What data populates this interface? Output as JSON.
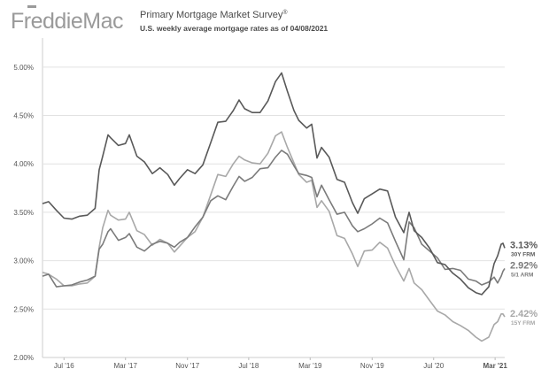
{
  "header": {
    "logo_text": "FreddieMac",
    "title": "Primary Mortgage Market Survey",
    "title_mark": "®",
    "subtitle": "U.S. weekly average mortgage rates as of 04/08/2021"
  },
  "colors": {
    "logo": "#9a9a9a",
    "series_30y": "#595959",
    "series_arm": "#7b7b7b",
    "series_15y": "#a8a8a8",
    "grid": "#e2e2e2",
    "background": "#ffffff"
  },
  "chart_data": {
    "type": "line",
    "xlabel": "",
    "ylabel": "",
    "x_range": [
      "2016-04-07",
      "2021-04-08"
    ],
    "ylim": [
      2.0,
      5.3
    ],
    "grid": "horizontal",
    "y_ticks": [
      {
        "value": 2.0,
        "label": "2.00%"
      },
      {
        "value": 2.5,
        "label": "2.50%"
      },
      {
        "value": 3.0,
        "label": "3.00%"
      },
      {
        "value": 3.5,
        "label": "3.50%"
      },
      {
        "value": 4.0,
        "label": "4.00%"
      },
      {
        "value": 4.5,
        "label": "4.50%"
      },
      {
        "value": 5.0,
        "label": "5.00%"
      }
    ],
    "x_ticks": [
      {
        "date": "2016-07-01",
        "label": "Jul '16",
        "bold": false
      },
      {
        "date": "2017-03-01",
        "label": "Mar '17",
        "bold": false
      },
      {
        "date": "2017-11-01",
        "label": "Nov '17",
        "bold": false
      },
      {
        "date": "2018-07-01",
        "label": "Jul '18",
        "bold": false
      },
      {
        "date": "2019-03-01",
        "label": "Mar '19",
        "bold": false
      },
      {
        "date": "2019-11-01",
        "label": "Nov '19",
        "bold": false
      },
      {
        "date": "2020-07-01",
        "label": "Jul '20",
        "bold": false
      },
      {
        "date": "2021-03-01",
        "label": "Mar '21",
        "bold": true
      }
    ],
    "series": [
      {
        "key": "30y",
        "name": "30Y FRM",
        "end_value_label": "3.13%",
        "color": "#595959",
        "points": [
          [
            "2016-04-07",
            3.59
          ],
          [
            "2016-05-01",
            3.61
          ],
          [
            "2016-06-01",
            3.52
          ],
          [
            "2016-07-01",
            3.44
          ],
          [
            "2016-08-01",
            3.43
          ],
          [
            "2016-09-01",
            3.46
          ],
          [
            "2016-10-01",
            3.47
          ],
          [
            "2016-11-01",
            3.54
          ],
          [
            "2016-11-17",
            3.94
          ],
          [
            "2016-12-01",
            4.08
          ],
          [
            "2016-12-22",
            4.3
          ],
          [
            "2017-01-01",
            4.27
          ],
          [
            "2017-02-01",
            4.19
          ],
          [
            "2017-03-01",
            4.21
          ],
          [
            "2017-03-16",
            4.3
          ],
          [
            "2017-04-15",
            4.08
          ],
          [
            "2017-05-15",
            4.02
          ],
          [
            "2017-06-15",
            3.9
          ],
          [
            "2017-07-15",
            3.96
          ],
          [
            "2017-08-15",
            3.89
          ],
          [
            "2017-09-10",
            3.78
          ],
          [
            "2017-10-01",
            3.85
          ],
          [
            "2017-11-01",
            3.94
          ],
          [
            "2017-12-01",
            3.9
          ],
          [
            "2018-01-01",
            3.99
          ],
          [
            "2018-02-01",
            4.22
          ],
          [
            "2018-03-01",
            4.43
          ],
          [
            "2018-04-01",
            4.44
          ],
          [
            "2018-05-01",
            4.55
          ],
          [
            "2018-05-24",
            4.66
          ],
          [
            "2018-06-15",
            4.57
          ],
          [
            "2018-07-15",
            4.53
          ],
          [
            "2018-08-15",
            4.53
          ],
          [
            "2018-09-15",
            4.65
          ],
          [
            "2018-10-15",
            4.85
          ],
          [
            "2018-11-08",
            4.94
          ],
          [
            "2018-12-01",
            4.75
          ],
          [
            "2018-12-27",
            4.55
          ],
          [
            "2019-01-15",
            4.45
          ],
          [
            "2019-02-15",
            4.37
          ],
          [
            "2019-03-07",
            4.41
          ],
          [
            "2019-03-28",
            4.06
          ],
          [
            "2019-04-15",
            4.17
          ],
          [
            "2019-05-15",
            4.07
          ],
          [
            "2019-06-15",
            3.84
          ],
          [
            "2019-07-15",
            3.81
          ],
          [
            "2019-08-15",
            3.6
          ],
          [
            "2019-09-05",
            3.49
          ],
          [
            "2019-10-01",
            3.64
          ],
          [
            "2019-11-01",
            3.69
          ],
          [
            "2019-12-01",
            3.74
          ],
          [
            "2020-01-01",
            3.72
          ],
          [
            "2020-02-01",
            3.45
          ],
          [
            "2020-03-05",
            3.29
          ],
          [
            "2020-03-26",
            3.5
          ],
          [
            "2020-04-15",
            3.31
          ],
          [
            "2020-05-15",
            3.24
          ],
          [
            "2020-06-15",
            3.13
          ],
          [
            "2020-07-16",
            2.98
          ],
          [
            "2020-08-15",
            2.96
          ],
          [
            "2020-09-15",
            2.87
          ],
          [
            "2020-10-15",
            2.81
          ],
          [
            "2020-11-15",
            2.72
          ],
          [
            "2020-12-15",
            2.67
          ],
          [
            "2021-01-07",
            2.65
          ],
          [
            "2021-02-04",
            2.73
          ],
          [
            "2021-02-25",
            2.97
          ],
          [
            "2021-03-11",
            3.05
          ],
          [
            "2021-03-25",
            3.17
          ],
          [
            "2021-04-01",
            3.18
          ],
          [
            "2021-04-08",
            3.13
          ]
        ]
      },
      {
        "key": "arm",
        "name": "5/1 ARM",
        "end_value_label": "2.92%",
        "color": "#7b7b7b",
        "points": [
          [
            "2016-04-07",
            2.84
          ],
          [
            "2016-05-01",
            2.86
          ],
          [
            "2016-06-01",
            2.73
          ],
          [
            "2016-07-01",
            2.74
          ],
          [
            "2016-08-01",
            2.75
          ],
          [
            "2016-09-01",
            2.78
          ],
          [
            "2016-10-01",
            2.8
          ],
          [
            "2016-11-01",
            2.84
          ],
          [
            "2016-11-17",
            3.12
          ],
          [
            "2016-12-01",
            3.17
          ],
          [
            "2016-12-22",
            3.3
          ],
          [
            "2017-01-01",
            3.33
          ],
          [
            "2017-02-01",
            3.21
          ],
          [
            "2017-03-01",
            3.24
          ],
          [
            "2017-03-16",
            3.28
          ],
          [
            "2017-04-15",
            3.14
          ],
          [
            "2017-05-15",
            3.1
          ],
          [
            "2017-06-15",
            3.17
          ],
          [
            "2017-07-15",
            3.2
          ],
          [
            "2017-08-15",
            3.18
          ],
          [
            "2017-09-10",
            3.14
          ],
          [
            "2017-10-01",
            3.19
          ],
          [
            "2017-11-01",
            3.24
          ],
          [
            "2017-12-01",
            3.35
          ],
          [
            "2018-01-01",
            3.45
          ],
          [
            "2018-02-01",
            3.62
          ],
          [
            "2018-03-01",
            3.67
          ],
          [
            "2018-04-01",
            3.63
          ],
          [
            "2018-05-01",
            3.77
          ],
          [
            "2018-05-24",
            3.87
          ],
          [
            "2018-06-15",
            3.82
          ],
          [
            "2018-07-15",
            3.86
          ],
          [
            "2018-08-15",
            3.95
          ],
          [
            "2018-09-15",
            3.96
          ],
          [
            "2018-10-15",
            4.07
          ],
          [
            "2018-11-08",
            4.14
          ],
          [
            "2018-12-01",
            4.1
          ],
          [
            "2018-12-27",
            3.98
          ],
          [
            "2019-01-15",
            3.9
          ],
          [
            "2019-02-15",
            3.88
          ],
          [
            "2019-03-07",
            3.86
          ],
          [
            "2019-03-28",
            3.66
          ],
          [
            "2019-04-15",
            3.78
          ],
          [
            "2019-05-15",
            3.63
          ],
          [
            "2019-06-15",
            3.48
          ],
          [
            "2019-07-15",
            3.5
          ],
          [
            "2019-08-15",
            3.36
          ],
          [
            "2019-09-05",
            3.3
          ],
          [
            "2019-10-01",
            3.33
          ],
          [
            "2019-11-01",
            3.38
          ],
          [
            "2019-12-01",
            3.44
          ],
          [
            "2020-01-01",
            3.39
          ],
          [
            "2020-02-01",
            3.2
          ],
          [
            "2020-03-05",
            3.01
          ],
          [
            "2020-03-26",
            3.4
          ],
          [
            "2020-04-15",
            3.34
          ],
          [
            "2020-05-15",
            3.17
          ],
          [
            "2020-06-15",
            3.1
          ],
          [
            "2020-07-16",
            3.03
          ],
          [
            "2020-08-15",
            2.91
          ],
          [
            "2020-09-15",
            2.92
          ],
          [
            "2020-10-15",
            2.9
          ],
          [
            "2020-11-15",
            2.81
          ],
          [
            "2020-12-15",
            2.79
          ],
          [
            "2021-01-07",
            2.75
          ],
          [
            "2021-02-04",
            2.78
          ],
          [
            "2021-02-25",
            2.83
          ],
          [
            "2021-03-11",
            2.77
          ],
          [
            "2021-03-25",
            2.84
          ],
          [
            "2021-04-01",
            2.89
          ],
          [
            "2021-04-08",
            2.92
          ]
        ]
      },
      {
        "key": "15y",
        "name": "15Y FRM",
        "end_value_label": "2.42%",
        "color": "#a8a8a8",
        "points": [
          [
            "2016-04-07",
            2.88
          ],
          [
            "2016-05-01",
            2.86
          ],
          [
            "2016-06-01",
            2.81
          ],
          [
            "2016-07-01",
            2.74
          ],
          [
            "2016-08-01",
            2.74
          ],
          [
            "2016-09-01",
            2.76
          ],
          [
            "2016-10-01",
            2.77
          ],
          [
            "2016-11-01",
            2.84
          ],
          [
            "2016-11-17",
            3.14
          ],
          [
            "2016-12-01",
            3.34
          ],
          [
            "2016-12-22",
            3.52
          ],
          [
            "2017-01-01",
            3.47
          ],
          [
            "2017-02-01",
            3.42
          ],
          [
            "2017-03-01",
            3.43
          ],
          [
            "2017-03-16",
            3.5
          ],
          [
            "2017-04-15",
            3.31
          ],
          [
            "2017-05-15",
            3.27
          ],
          [
            "2017-06-15",
            3.16
          ],
          [
            "2017-07-15",
            3.22
          ],
          [
            "2017-08-15",
            3.18
          ],
          [
            "2017-09-10",
            3.09
          ],
          [
            "2017-10-01",
            3.15
          ],
          [
            "2017-11-01",
            3.24
          ],
          [
            "2017-12-01",
            3.3
          ],
          [
            "2018-01-01",
            3.45
          ],
          [
            "2018-02-01",
            3.68
          ],
          [
            "2018-03-01",
            3.89
          ],
          [
            "2018-04-01",
            3.87
          ],
          [
            "2018-05-01",
            4.0
          ],
          [
            "2018-05-24",
            4.08
          ],
          [
            "2018-06-15",
            4.04
          ],
          [
            "2018-07-15",
            4.01
          ],
          [
            "2018-08-15",
            4.0
          ],
          [
            "2018-09-15",
            4.11
          ],
          [
            "2018-10-15",
            4.29
          ],
          [
            "2018-11-08",
            4.33
          ],
          [
            "2018-12-01",
            4.17
          ],
          [
            "2018-12-27",
            4.01
          ],
          [
            "2019-01-15",
            3.89
          ],
          [
            "2019-02-15",
            3.81
          ],
          [
            "2019-03-07",
            3.83
          ],
          [
            "2019-03-28",
            3.55
          ],
          [
            "2019-04-15",
            3.62
          ],
          [
            "2019-05-15",
            3.51
          ],
          [
            "2019-06-15",
            3.26
          ],
          [
            "2019-07-15",
            3.23
          ],
          [
            "2019-08-15",
            3.07
          ],
          [
            "2019-09-05",
            2.94
          ],
          [
            "2019-10-01",
            3.1
          ],
          [
            "2019-11-01",
            3.11
          ],
          [
            "2019-12-01",
            3.19
          ],
          [
            "2020-01-01",
            3.13
          ],
          [
            "2020-02-01",
            2.95
          ],
          [
            "2020-03-05",
            2.79
          ],
          [
            "2020-03-26",
            2.92
          ],
          [
            "2020-04-15",
            2.77
          ],
          [
            "2020-05-15",
            2.7
          ],
          [
            "2020-06-15",
            2.59
          ],
          [
            "2020-07-16",
            2.48
          ],
          [
            "2020-08-15",
            2.44
          ],
          [
            "2020-09-15",
            2.37
          ],
          [
            "2020-10-15",
            2.33
          ],
          [
            "2020-11-15",
            2.28
          ],
          [
            "2020-12-15",
            2.21
          ],
          [
            "2021-01-07",
            2.17
          ],
          [
            "2021-02-04",
            2.21
          ],
          [
            "2021-02-25",
            2.34
          ],
          [
            "2021-03-11",
            2.37
          ],
          [
            "2021-03-25",
            2.45
          ],
          [
            "2021-04-01",
            2.45
          ],
          [
            "2021-04-08",
            2.42
          ]
        ]
      }
    ]
  }
}
